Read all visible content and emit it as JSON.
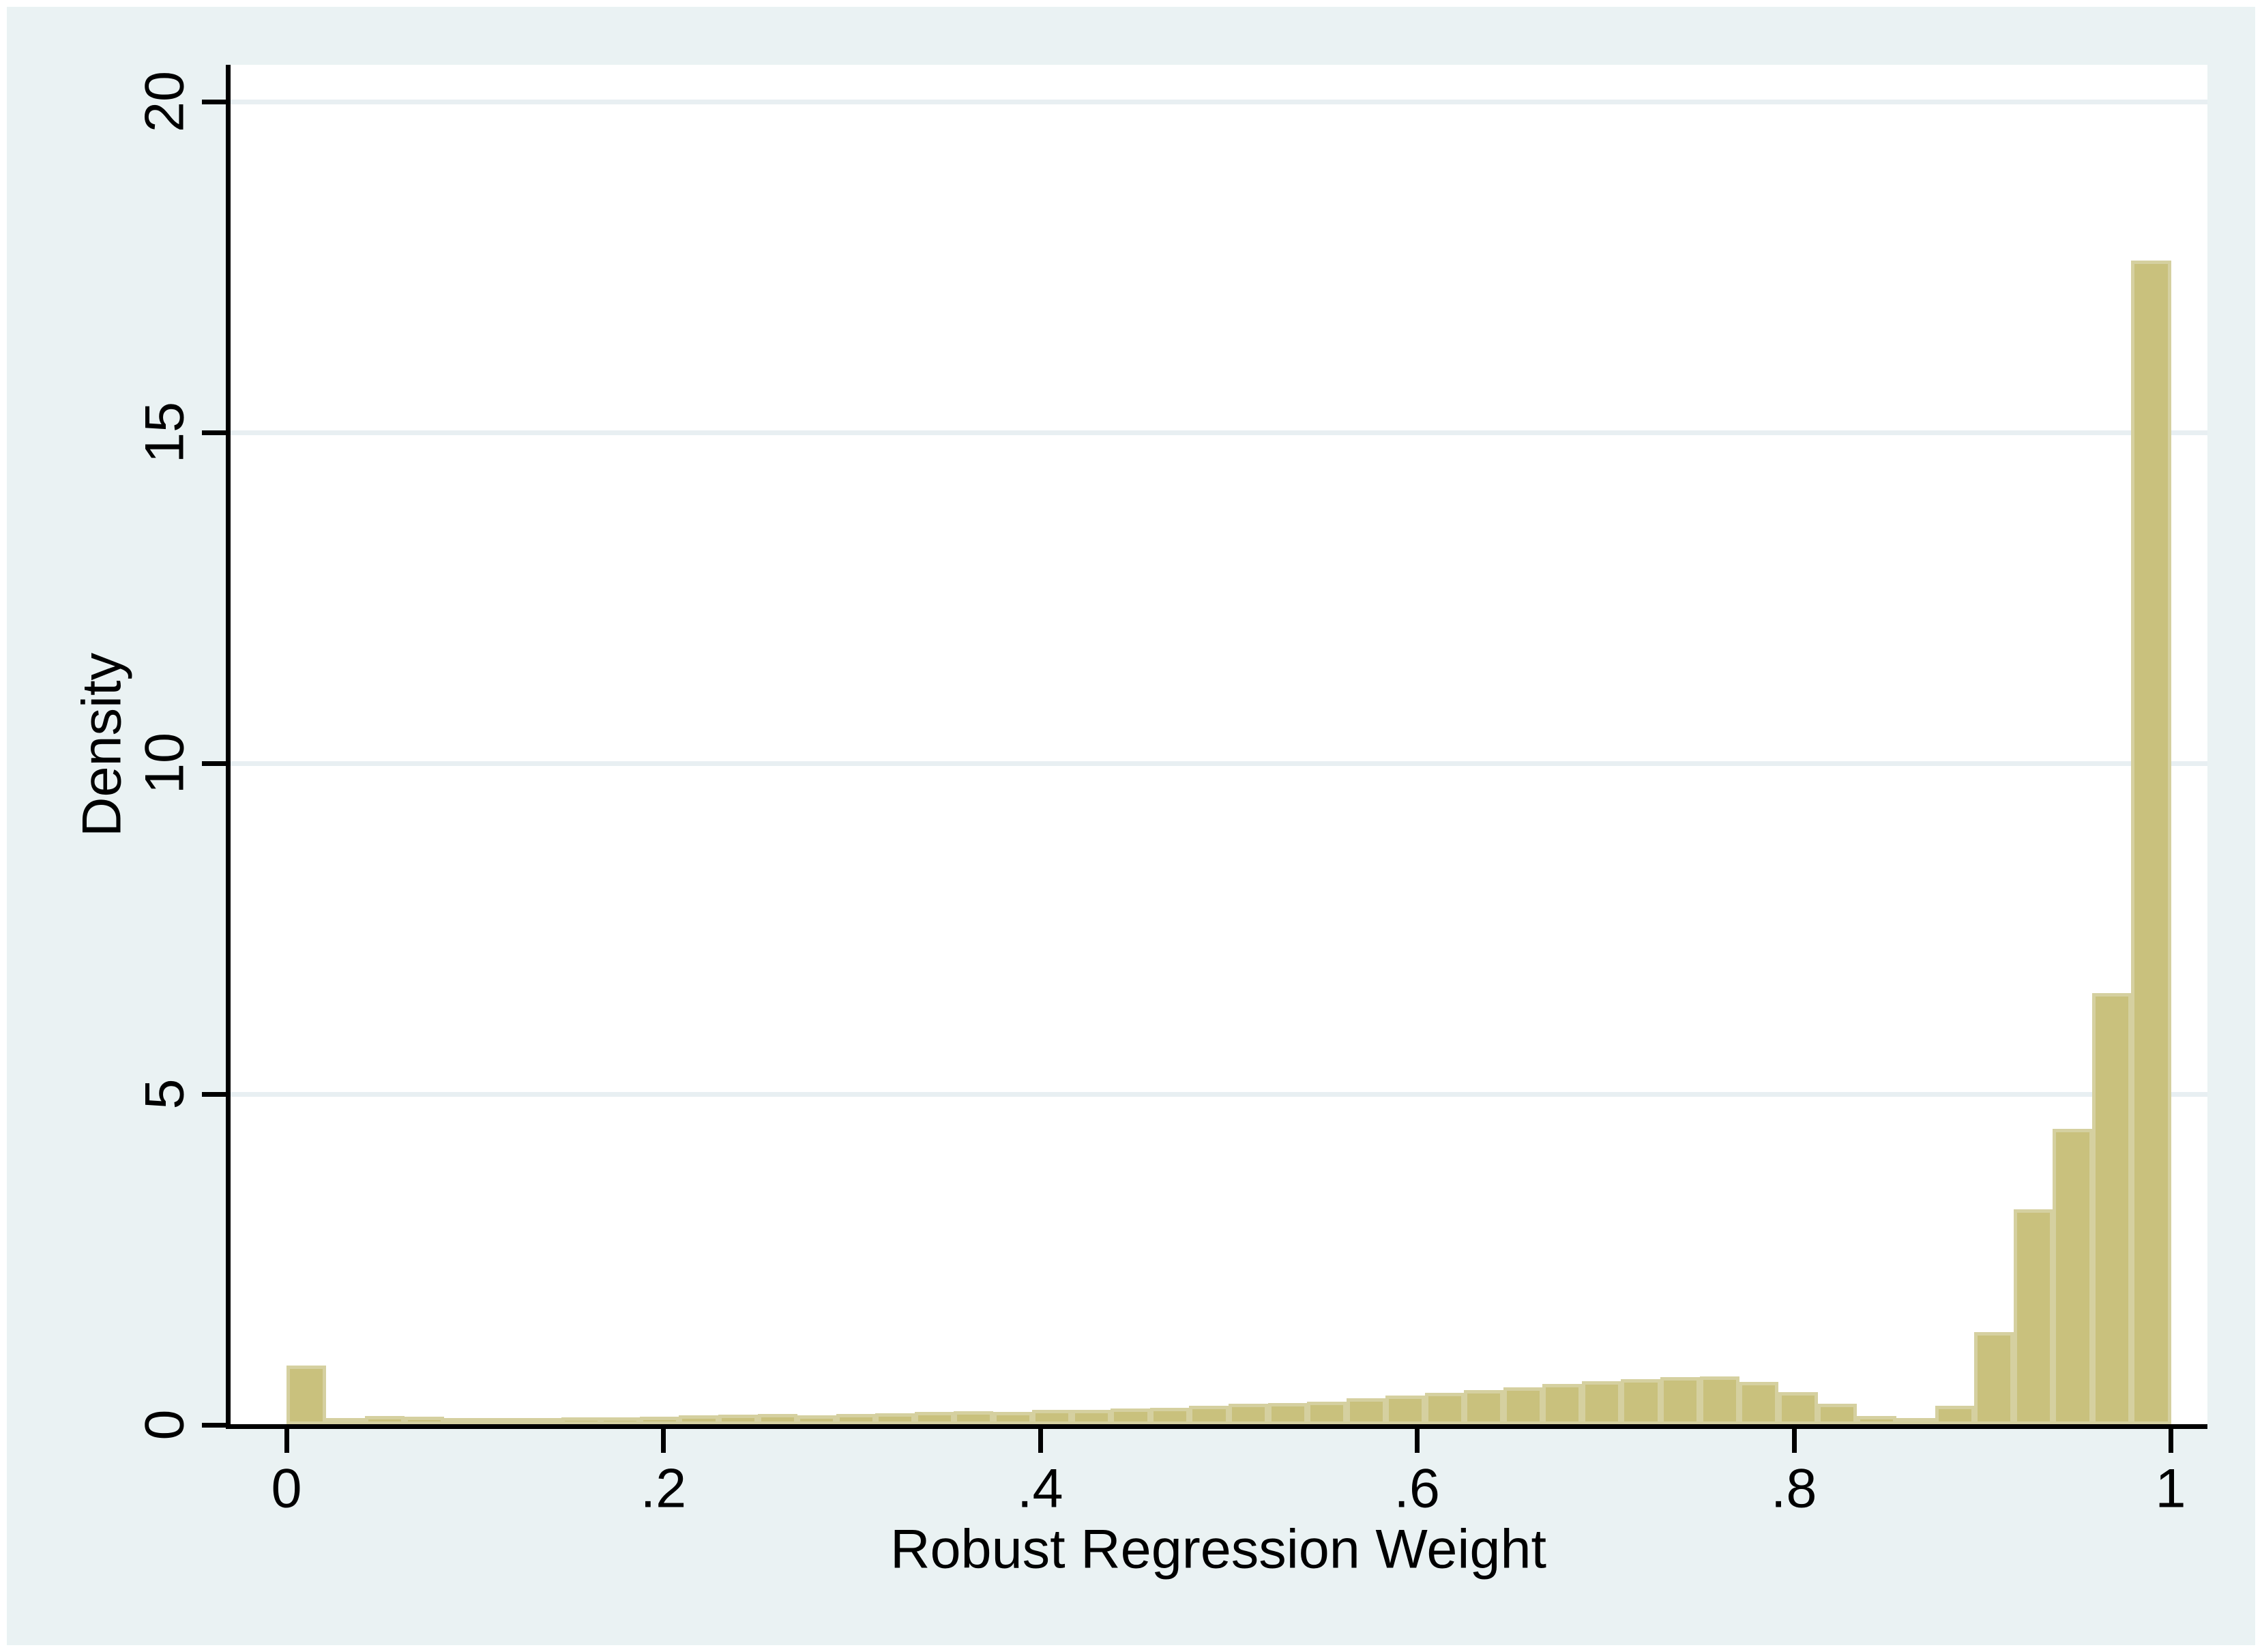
{
  "figure": {
    "background_color": "#ffffff",
    "panel_color": "#eaf2f3"
  },
  "chart_data": {
    "type": "bar",
    "subtype": "histogram",
    "title": "",
    "xlabel": "Robust Regression Weight",
    "ylabel": "Density",
    "xlim": [
      -0.03,
      1.02
    ],
    "ylim": [
      0,
      20.6
    ],
    "grid": true,
    "legend": "none",
    "x_tick_values": [
      0,
      0.2,
      0.4,
      0.6,
      0.8,
      1
    ],
    "x_tick_labels": [
      "0",
      ".2",
      ".4",
      ".6",
      ".8",
      "1"
    ],
    "y_tick_values": [
      0,
      5,
      10,
      15,
      20
    ],
    "y_tick_labels": [
      "0",
      "5",
      "10",
      "15",
      "20"
    ],
    "bin_count": 48,
    "bin_start": 0,
    "bin_width": 0.0208333,
    "densities": [
      0.9,
      0.1,
      0.13,
      0.12,
      0.1,
      0.1,
      0.1,
      0.11,
      0.11,
      0.12,
      0.14,
      0.15,
      0.16,
      0.14,
      0.16,
      0.18,
      0.2,
      0.21,
      0.2,
      0.23,
      0.23,
      0.25,
      0.26,
      0.29,
      0.32,
      0.33,
      0.35,
      0.4,
      0.44,
      0.48,
      0.53,
      0.57,
      0.62,
      0.66,
      0.69,
      0.72,
      0.73,
      0.65,
      0.49,
      0.32,
      0.13,
      0.07,
      0.29,
      1.4,
      3.26,
      4.47,
      6.53,
      17.6
    ],
    "bar_fill_color": "#c9c17d",
    "bar_outline_color": "#d5d0a0",
    "gridline_color": "#e8eff2",
    "axis_color": "#000000",
    "text_color": "#000000"
  }
}
